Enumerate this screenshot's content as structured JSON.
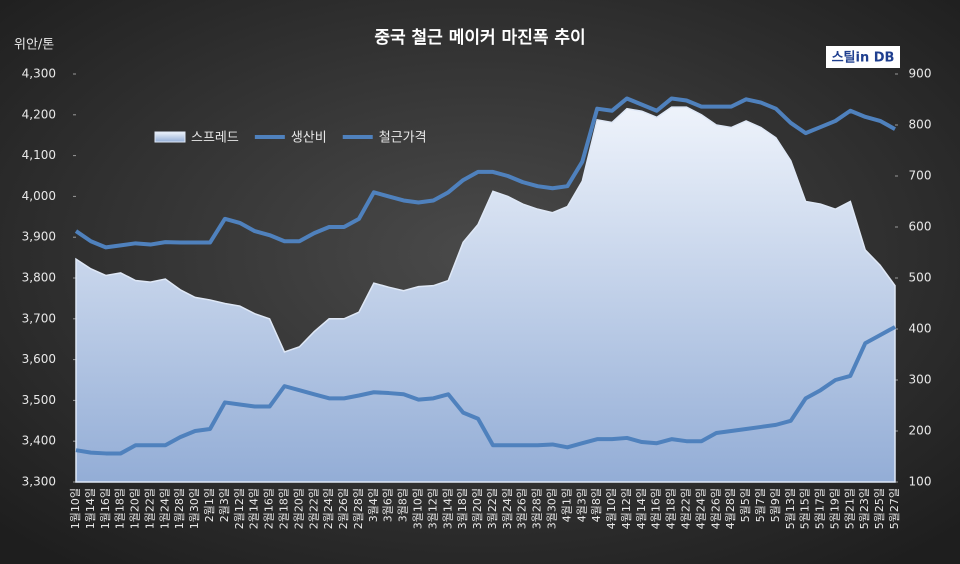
{
  "chart_data": {
    "type": "line",
    "title": "중국 철근 메이커 마진폭 추이",
    "ylabel": "위안/톤",
    "logo": "스틸in DB",
    "categories": [
      "1월10일",
      "1월14일",
      "1월16일",
      "1월18일",
      "1월20일",
      "1월22일",
      "1월24일",
      "1월28일",
      "1월30일",
      "2월1일",
      "2월3일",
      "2월12일",
      "2월14일",
      "2월16일",
      "2월18일",
      "2월20일",
      "2월22일",
      "2월24일",
      "2월26일",
      "2월28일",
      "3월4일",
      "3월6일",
      "3월8일",
      "3월10일",
      "3월12일",
      "3월14일",
      "3월18일",
      "3월20일",
      "3월22일",
      "3월24일",
      "3월26일",
      "3월28일",
      "3월30일",
      "4월1일",
      "4월3일",
      "4월8일",
      "4월10일",
      "4월12일",
      "4월14일",
      "4월16일",
      "4월18일",
      "4월22일",
      "4월24일",
      "4월26일",
      "4월28일",
      "5월5일",
      "5월7일",
      "5월9일",
      "5월13일",
      "5월15일",
      "5월17일",
      "5월19일",
      "5월21일",
      "5월23일",
      "5월25일",
      "5월27일"
    ],
    "series": [
      {
        "name": "스프레드",
        "kind": "area",
        "axis": "y2",
        "color": "#c9d8f0",
        "values": [
          537,
          518,
          505,
          510,
          495,
          492,
          498,
          477,
          462,
          457,
          450,
          445,
          430,
          420,
          355,
          365,
          395,
          420,
          420,
          433,
          490,
          482,
          475,
          483,
          485,
          495,
          570,
          605,
          670,
          660,
          645,
          635,
          628,
          640,
          690,
          810,
          805,
          832,
          827,
          815,
          835,
          835,
          820,
          800,
          795,
          808,
          795,
          775,
          730,
          650,
          645,
          635,
          650,
          555,
          525,
          485
        ]
      },
      {
        "name": "생산비",
        "kind": "line",
        "color": "#4f81bd",
        "values": [
          3378,
          3372,
          3370,
          3370,
          3390,
          3390,
          3390,
          3410,
          3425,
          3430,
          3495,
          3490,
          3485,
          3485,
          3535,
          3525,
          3515,
          3505,
          3505,
          3512,
          3520,
          3518,
          3515,
          3502,
          3505,
          3515,
          3470,
          3455,
          3390,
          3390,
          3390,
          3390,
          3392,
          3385,
          3395,
          3405,
          3405,
          3408,
          3398,
          3395,
          3405,
          3400,
          3400,
          3420,
          3425,
          3430,
          3435,
          3440,
          3450,
          3505,
          3525,
          3550,
          3560,
          3640,
          3660,
          3680
        ]
      },
      {
        "name": "철근가격",
        "kind": "line",
        "color": "#4f81bd",
        "values": [
          3915,
          3890,
          3875,
          3880,
          3885,
          3882,
          3888,
          3887,
          3887,
          3887,
          3945,
          3935,
          3915,
          3905,
          3890,
          3890,
          3910,
          3925,
          3925,
          3945,
          4010,
          4000,
          3990,
          3985,
          3990,
          4010,
          4040,
          4060,
          4060,
          4050,
          4035,
          4025,
          4020,
          4025,
          4085,
          4215,
          4210,
          4240,
          4225,
          4210,
          4240,
          4235,
          4220,
          4220,
          4220,
          4238,
          4230,
          4215,
          4180,
          4155,
          4170,
          4185,
          4210,
          4195,
          4185,
          4165
        ]
      }
    ],
    "ylim": [
      3300,
      4300
    ],
    "yticks": [
      {
        "value": 3300,
        "label": "3,300"
      },
      {
        "value": 3400,
        "label": "3,400"
      },
      {
        "value": 3500,
        "label": "3,500"
      },
      {
        "value": 3600,
        "label": "3,600"
      },
      {
        "value": 3700,
        "label": "3,700"
      },
      {
        "value": 3800,
        "label": "3,800"
      },
      {
        "value": 3900,
        "label": "3,900"
      },
      {
        "value": 4000,
        "label": "4,000"
      },
      {
        "value": 4100,
        "label": "4,100"
      },
      {
        "value": 4200,
        "label": "4,200"
      },
      {
        "value": 4300,
        "label": "4,300"
      }
    ],
    "y2lim": [
      100,
      900
    ],
    "y2ticks": [
      100,
      200,
      300,
      400,
      500,
      600,
      700,
      800,
      900
    ]
  }
}
